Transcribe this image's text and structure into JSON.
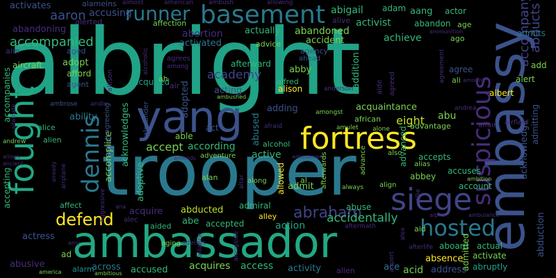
{
  "palette": {
    "background": "#000000",
    "colors": [
      "#20a386",
      "#2a788e",
      "#3b528b",
      "#472d7b",
      "#44015a",
      "#22a884",
      "#7ad151",
      "#fde725",
      "#35b779",
      "#21918c",
      "#414487",
      "#bddf26"
    ]
  },
  "words": [
    {
      "text": "albright",
      "color": "#20a386"
    },
    {
      "text": "trooper",
      "color": "#2a788e"
    },
    {
      "text": "ambassador",
      "color": "#22a884"
    },
    {
      "text": "embassy",
      "color": "#3b528b"
    },
    {
      "text": "yang",
      "color": "#3b528b"
    },
    {
      "text": "fortress",
      "color": "#fde725"
    },
    {
      "text": "fought",
      "color": "#22a884"
    },
    {
      "text": "basement",
      "color": "#2a788e"
    },
    {
      "text": "suspicious",
      "color": "#472d7b"
    },
    {
      "text": "siege",
      "color": "#414487"
    },
    {
      "text": "dennis",
      "color": "#2a788e"
    },
    {
      "text": "hosted",
      "color": "#2a788e"
    },
    {
      "text": "runner",
      "color": "#2a788e"
    },
    {
      "text": "abraham",
      "color": "#414487"
    },
    {
      "text": "defend",
      "color": "#fde725"
    },
    {
      "text": "accompanied",
      "color": "#35b779"
    },
    {
      "text": "accidentally",
      "color": "#35b779"
    },
    {
      "text": "academy",
      "color": "#414487"
    },
    {
      "text": "abducts",
      "color": "#414487"
    },
    {
      "text": "accompany",
      "color": "#414487"
    },
    {
      "text": "admits",
      "color": "#2a788e"
    },
    {
      "text": "aaron",
      "color": "#3b528b"
    },
    {
      "text": "accusing",
      "color": "#3b528b"
    },
    {
      "text": "abigail",
      "color": "#35b779"
    },
    {
      "text": "adam",
      "color": "#35b779"
    },
    {
      "text": "aang",
      "color": "#35b779"
    },
    {
      "text": "actor",
      "color": "#35b779"
    },
    {
      "text": "activist",
      "color": "#35b779"
    },
    {
      "text": "abandon",
      "color": "#35b779"
    },
    {
      "text": "abandoning",
      "color": "#472d7b"
    },
    {
      "text": "abortion",
      "color": "#472d7b"
    },
    {
      "text": "abandoned",
      "color": "#7ad151"
    },
    {
      "text": "accident",
      "color": "#7ad151"
    },
    {
      "text": "achieve",
      "color": "#35b779"
    },
    {
      "text": "actually",
      "color": "#35b779"
    },
    {
      "text": "activated",
      "color": "#2a788e"
    },
    {
      "text": "acquired",
      "color": "#20a386"
    },
    {
      "text": "acquaintance",
      "color": "#7ad151"
    },
    {
      "text": "eight",
      "color": "#bddf26"
    },
    {
      "text": "abu",
      "color": "#7ad151"
    },
    {
      "text": "accept",
      "color": "#7ad151"
    },
    {
      "text": "according",
      "color": "#35b779"
    },
    {
      "text": "able",
      "color": "#7ad151"
    },
    {
      "text": "active",
      "color": "#35b779"
    },
    {
      "text": "accepts",
      "color": "#35b779"
    },
    {
      "text": "abbey",
      "color": "#7ad151"
    },
    {
      "text": "accuses",
      "color": "#35b779"
    },
    {
      "text": "account",
      "color": "#35b779"
    },
    {
      "text": "abducted",
      "color": "#bddf26"
    },
    {
      "text": "accepted",
      "color": "#35b779"
    },
    {
      "text": "abuse",
      "color": "#35b779"
    },
    {
      "text": "admiral",
      "color": "#35b779"
    },
    {
      "text": "action",
      "color": "#20a386"
    },
    {
      "text": "actual",
      "color": "#35b779"
    },
    {
      "text": "aboard",
      "color": "#35b779"
    },
    {
      "text": "activate",
      "color": "#7ad151"
    },
    {
      "text": "absence",
      "color": "#fde725"
    },
    {
      "text": "abruptly",
      "color": "#20a386"
    },
    {
      "text": "access",
      "color": "#35b779"
    },
    {
      "text": "activity",
      "color": "#2a788e"
    },
    {
      "text": "acquires",
      "color": "#7ad151"
    },
    {
      "text": "accused",
      "color": "#35b779"
    },
    {
      "text": "across",
      "color": "#2a788e"
    },
    {
      "text": "abusive",
      "color": "#472d7b"
    },
    {
      "text": "actress",
      "color": "#3b528b"
    },
    {
      "text": "alarm",
      "color": "#21918c"
    },
    {
      "text": "acid",
      "color": "#7ad151"
    },
    {
      "text": "address",
      "color": "#3b528b"
    },
    {
      "text": "ace",
      "color": "#2a788e"
    },
    {
      "text": "adding",
      "color": "#3b528b"
    },
    {
      "text": "abused",
      "color": "#2a788e"
    },
    {
      "text": "acting",
      "color": "#3b528b"
    },
    {
      "text": "abby",
      "color": "#7ad151"
    },
    {
      "text": "addition",
      "color": "#35b779"
    },
    {
      "text": "admitted",
      "color": "#7ad151"
    },
    {
      "text": "admit",
      "color": "#7ad151"
    },
    {
      "text": "acknowledge",
      "color": "#3b528b"
    },
    {
      "text": "admitting",
      "color": "#3b528b"
    },
    {
      "text": "abduction",
      "color": "#3b528b"
    },
    {
      "text": "add",
      "color": "#7ad151"
    },
    {
      "text": "alert",
      "color": "#7ad151"
    },
    {
      "text": "albert",
      "color": "#fde725"
    },
    {
      "text": "agree",
      "color": "#3b528b"
    },
    {
      "text": "advanced",
      "color": "#35b779"
    },
    {
      "text": "advantage",
      "color": "#7ad151"
    },
    {
      "text": "accomplice",
      "color": "#7ad151"
    },
    {
      "text": "ability",
      "color": "#2a788e"
    },
    {
      "text": "adult",
      "color": "#3b528b"
    },
    {
      "text": "adoptive",
      "color": "#35b779"
    },
    {
      "text": "adopted",
      "color": "#3b528b"
    },
    {
      "text": "acknowledges",
      "color": "#35b779"
    },
    {
      "text": "accompanies",
      "color": "#35b779"
    },
    {
      "text": "accepting",
      "color": "#35b779"
    },
    {
      "text": "affect",
      "color": "#35b779"
    },
    {
      "text": "acquire",
      "color": "#472d7b"
    },
    {
      "text": "aided",
      "color": "#35b779"
    },
    {
      "text": "abe",
      "color": "#35b779"
    },
    {
      "text": "adopt",
      "color": "#7ad151"
    },
    {
      "text": "afford",
      "color": "#7ad151"
    },
    {
      "text": "agent",
      "color": "#3b528b"
    },
    {
      "text": "aged",
      "color": "#3b528b"
    },
    {
      "text": "aircraft",
      "color": "#7ad151"
    },
    {
      "text": "aim",
      "color": "#472d7b"
    },
    {
      "text": "activates",
      "color": "#3b528b"
    },
    {
      "text": "alameins",
      "color": "#3b528b"
    },
    {
      "text": "almost",
      "color": "#472d7b"
    },
    {
      "text": "american",
      "color": "#472d7b"
    },
    {
      "text": "ambush",
      "color": "#472d7b"
    },
    {
      "text": "allowing",
      "color": "#472d7b"
    },
    {
      "text": "alive",
      "color": "#472d7b"
    },
    {
      "text": "alerted",
      "color": "#472d7b"
    },
    {
      "text": "affection",
      "color": "#7ad151"
    },
    {
      "text": "advice",
      "color": "#7ad151"
    },
    {
      "text": "agency",
      "color": "#3b528b"
    },
    {
      "text": "ahead",
      "color": "#3b528b"
    },
    {
      "text": "ammunition",
      "color": "#472d7b"
    },
    {
      "text": "age",
      "color": "#7ad151"
    },
    {
      "text": "ago",
      "color": "#7ad151"
    },
    {
      "text": "agrees",
      "color": "#472d7b"
    },
    {
      "text": "afterward",
      "color": "#35b779"
    },
    {
      "text": "alfred",
      "color": "#35b779"
    },
    {
      "text": "alison",
      "color": "#fde725"
    },
    {
      "text": "ah",
      "color": "#7ad151"
    },
    {
      "text": "among",
      "color": "#472d7b"
    },
    {
      "text": "alexander",
      "color": "#3b528b"
    },
    {
      "text": "alcoholic",
      "color": "#472d7b"
    },
    {
      "text": "allison",
      "color": "#472d7b"
    },
    {
      "text": "ali",
      "color": "#7ad151"
    },
    {
      "text": "agreement",
      "color": "#472d7b"
    },
    {
      "text": "agreed",
      "color": "#472d7b"
    },
    {
      "text": "aide",
      "color": "#472d7b"
    },
    {
      "text": "amount",
      "color": "#472d7b"
    },
    {
      "text": "anderson",
      "color": "#472d7b"
    },
    {
      "text": "ambrose",
      "color": "#3b528b"
    },
    {
      "text": "andie",
      "color": "#472d7b"
    },
    {
      "text": "agreeing",
      "color": "#3b528b"
    },
    {
      "text": "ambushed",
      "color": "#7ad151"
    },
    {
      "text": "amongst",
      "color": "#7ad151"
    },
    {
      "text": "andrea",
      "color": "#472d7b"
    },
    {
      "text": "alternate",
      "color": "#472d7b"
    },
    {
      "text": "alice",
      "color": "#35b779"
    },
    {
      "text": "alien",
      "color": "#35b779"
    },
    {
      "text": "andrew",
      "color": "#7ad151"
    },
    {
      "text": "african",
      "color": "#7ad151"
    },
    {
      "text": "amulet",
      "color": "#7ad151"
    },
    {
      "text": "alone",
      "color": "#7ad151"
    },
    {
      "text": "airfield",
      "color": "#472d7b"
    },
    {
      "text": "affair",
      "color": "#472d7b"
    },
    {
      "text": "afraid",
      "color": "#472d7b"
    },
    {
      "text": "air",
      "color": "#472d7b"
    },
    {
      "text": "aid",
      "color": "#7ad151"
    },
    {
      "text": "aging",
      "color": "#7ad151"
    },
    {
      "text": "advises",
      "color": "#472d7b"
    },
    {
      "text": "alan",
      "color": "#7ad151"
    },
    {
      "text": "al",
      "color": "#7ad151"
    },
    {
      "text": "altar",
      "color": "#472d7b"
    },
    {
      "text": "along",
      "color": "#7ad151"
    },
    {
      "text": "allowed",
      "color": "#fde725"
    },
    {
      "text": "amends",
      "color": "#472d7b"
    },
    {
      "text": "amusement",
      "color": "#472d7b"
    },
    {
      "text": "afterwards",
      "color": "#7ad151"
    },
    {
      "text": "also",
      "color": "#7ad151"
    },
    {
      "text": "alias",
      "color": "#7ad151"
    },
    {
      "text": "align",
      "color": "#7ad151"
    },
    {
      "text": "always",
      "color": "#7ad151"
    },
    {
      "text": "ambition",
      "color": "#7ad151"
    },
    {
      "text": "alley",
      "color": "#fde725"
    },
    {
      "text": "adventure",
      "color": "#7ad151"
    },
    {
      "text": "alcohol",
      "color": "#35b779"
    },
    {
      "text": "act",
      "color": "#3b528b"
    },
    {
      "text": "already",
      "color": "#472d7b"
    },
    {
      "text": "allows",
      "color": "#472d7b"
    },
    {
      "text": "ancient",
      "color": "#472d7b"
    },
    {
      "text": "airplane",
      "color": "#472d7b"
    },
    {
      "text": "aggressive",
      "color": "#472d7b"
    },
    {
      "text": "ana",
      "color": "#472d7b"
    },
    {
      "text": "alec",
      "color": "#472d7b"
    },
    {
      "text": "amy",
      "color": "#472d7b"
    },
    {
      "text": "aftermath",
      "color": "#472d7b"
    },
    {
      "text": "allie",
      "color": "#472d7b"
    },
    {
      "text": "alpha",
      "color": "#472d7b"
    },
    {
      "text": "ambulance",
      "color": "#472d7b"
    },
    {
      "text": "alliance",
      "color": "#472d7b"
    },
    {
      "text": "alongside",
      "color": "#472d7b"
    },
    {
      "text": "alex",
      "color": "#472d7b"
    },
    {
      "text": "airport",
      "color": "#472d7b"
    },
    {
      "text": "allen",
      "color": "#472d7b"
    },
    {
      "text": "afterlife",
      "color": "#472d7b"
    },
    {
      "text": "ad",
      "color": "#7ad151"
    },
    {
      "text": "america",
      "color": "#7ad151"
    },
    {
      "text": "ambitious",
      "color": "#7ad151"
    },
    {
      "text": "advance",
      "color": "#7ad151"
    }
  ]
}
